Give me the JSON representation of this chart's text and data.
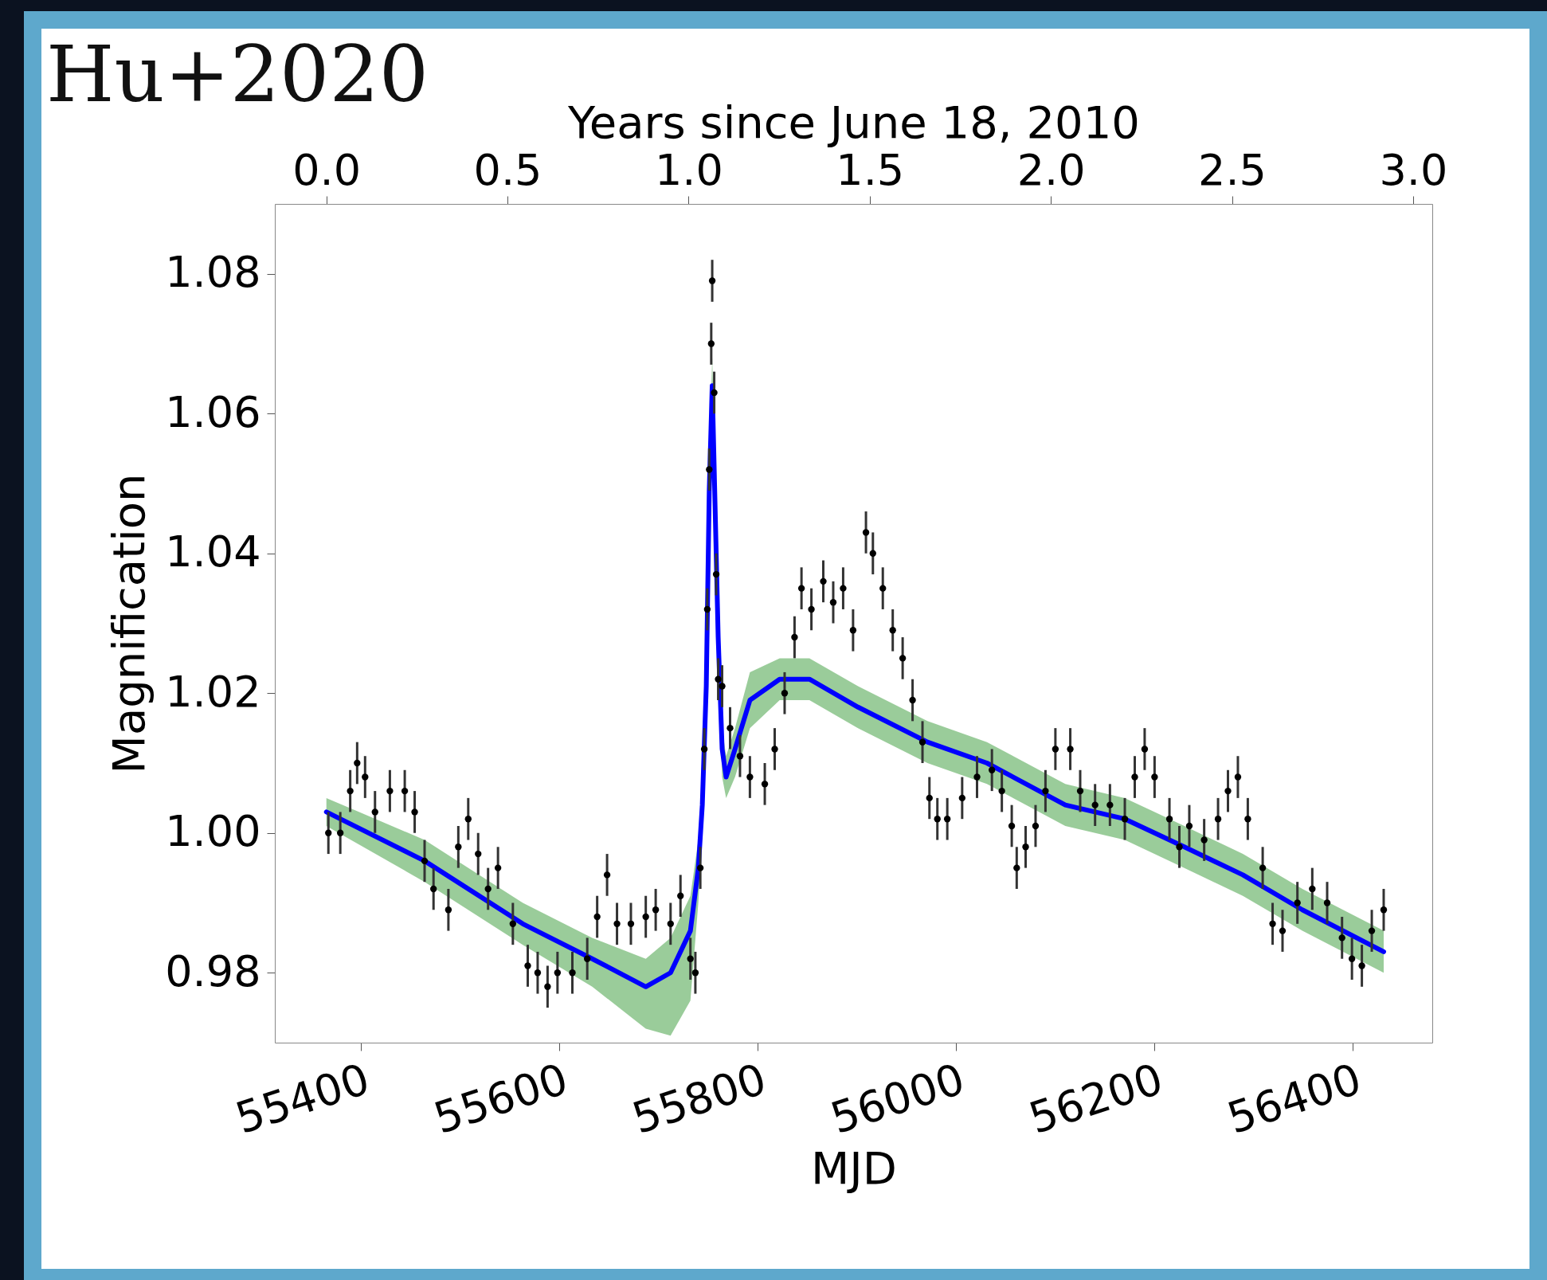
{
  "chart_data": {
    "type": "scatter",
    "title": "Hu+2020",
    "xlabel": "MJD",
    "ylabel": "Magnification",
    "x2label": "Years since June 18, 2010",
    "xlim": [
      55313,
      56480
    ],
    "xticks": [
      55400,
      55600,
      55800,
      56000,
      56200,
      56400
    ],
    "x2lim": [
      -0.142,
      3.053
    ],
    "x2ticks": [
      {
        "value": 0,
        "label": "0.0"
      },
      {
        "value": 0.5,
        "label": "0.5"
      },
      {
        "value": 1,
        "label": "1.0"
      },
      {
        "value": 1.5,
        "label": "1.5"
      },
      {
        "value": 2,
        "label": "2.0"
      },
      {
        "value": 2.5,
        "label": "2.5"
      },
      {
        "value": 3,
        "label": "3.0"
      }
    ],
    "ylim": [
      0.97,
      1.09
    ],
    "yticks": [
      {
        "value": 0.98,
        "label": "0.98"
      },
      {
        "value": 1,
        "label": "1.00"
      },
      {
        "value": 1.02,
        "label": "1.02"
      },
      {
        "value": 1.04,
        "label": "1.04"
      },
      {
        "value": 1.06,
        "label": "1.06"
      },
      {
        "value": 1.08,
        "label": "1.08"
      }
    ],
    "series": [
      {
        "type": "line",
        "color": "#0000ff",
        "x": [
          55365,
          55464,
          55563,
          55633,
          55687,
          55712,
          55732,
          55740,
          55744,
          55748,
          55751,
          55754,
          55760,
          55764,
          55768,
          55777,
          55792,
          55822,
          55852,
          55901,
          55971,
          56031,
          56110,
          56170,
          56230,
          56289,
          56349,
          56431
        ],
        "values": [
          1.003,
          0.996,
          0.987,
          0.982,
          0.978,
          0.98,
          0.986,
          0.995,
          1.004,
          1.021,
          1.049,
          1.064,
          1.028,
          1.012,
          1.008,
          1.012,
          1.019,
          1.022,
          1.022,
          1.018,
          1.013,
          1.01,
          1.004,
          1.002,
          0.998,
          0.994,
          0.989,
          0.983
        ],
        "lower": [
          1.001,
          0.993,
          0.984,
          0.978,
          0.972,
          0.971,
          0.976,
          0.99,
          1.0,
          1.017,
          1.045,
          1.06,
          1.024,
          1.008,
          1.005,
          1.008,
          1.015,
          1.019,
          1.019,
          1.015,
          1.01,
          1.007,
          1.001,
          0.999,
          0.995,
          0.991,
          0.986,
          0.98
        ],
        "upper": [
          1.005,
          0.999,
          0.99,
          0.985,
          0.982,
          0.985,
          0.991,
          0.999,
          1.008,
          1.025,
          1.053,
          1.068,
          1.032,
          1.015,
          1.011,
          1.015,
          1.023,
          1.025,
          1.025,
          1.021,
          1.016,
          1.013,
          1.007,
          1.005,
          1.001,
          0.997,
          0.992,
          0.986
        ]
      },
      {
        "color": "#000000",
        "marker": "circle",
        "x": [
          55367,
          55379,
          55389,
          55396,
          55404,
          55414,
          55429,
          55444,
          55454,
          55464,
          55473,
          55488,
          55498,
          55508,
          55518,
          55528,
          55538,
          55553,
          55568,
          55578,
          55588,
          55598,
          55613,
          55628,
          55638,
          55648,
          55658,
          55672,
          55687,
          55697,
          55712,
          55722,
          55732,
          55737,
          55742,
          55746,
          55749,
          55751,
          55753,
          55754,
          55756,
          55758,
          55760,
          55764,
          55772,
          55782,
          55792,
          55807,
          55817,
          55827,
          55837,
          55844,
          55854,
          55866,
          55876,
          55886,
          55896,
          55909,
          55916,
          55926,
          55936,
          55946,
          55956,
          55966,
          55973,
          55981,
          55991,
          56006,
          56021,
          56036,
          56046,
          56056,
          56061,
          56070,
          56080,
          56090,
          56100,
          56115,
          56125,
          56140,
          56155,
          56170,
          56180,
          56190,
          56200,
          56215,
          56225,
          56235,
          56250,
          56264,
          56274,
          56284,
          56294,
          56309,
          56319,
          56329,
          56344,
          56359,
          56374,
          56389,
          56399,
          56409,
          56419,
          56431
        ],
        "values": [
          1.0,
          1.0,
          1.006,
          1.01,
          1.008,
          1.003,
          1.006,
          1.006,
          1.003,
          0.996,
          0.992,
          0.989,
          0.998,
          1.002,
          0.997,
          0.992,
          0.995,
          0.987,
          0.981,
          0.98,
          0.978,
          0.98,
          0.98,
          0.982,
          0.988,
          0.994,
          0.987,
          0.987,
          0.988,
          0.989,
          0.987,
          0.991,
          0.982,
          0.98,
          0.995,
          1.012,
          1.032,
          1.052,
          1.07,
          1.079,
          1.063,
          1.037,
          1.022,
          1.021,
          1.015,
          1.011,
          1.008,
          1.007,
          1.012,
          1.02,
          1.028,
          1.035,
          1.032,
          1.036,
          1.033,
          1.035,
          1.029,
          1.043,
          1.04,
          1.035,
          1.029,
          1.025,
          1.019,
          1.013,
          1.005,
          1.002,
          1.002,
          1.005,
          1.008,
          1.009,
          1.006,
          1.001,
          0.995,
          0.998,
          1.001,
          1.006,
          1.012,
          1.012,
          1.006,
          1.004,
          1.004,
          1.002,
          1.008,
          1.012,
          1.008,
          1.002,
          0.998,
          1.001,
          0.999,
          1.002,
          1.006,
          1.008,
          1.002,
          0.995,
          0.987,
          0.986,
          0.99,
          0.992,
          0.99,
          0.985,
          0.982,
          0.981,
          0.986,
          0.989
        ],
        "errors": [
          0.003,
          0.003,
          0.003,
          0.003,
          0.003,
          0.003,
          0.003,
          0.003,
          0.003,
          0.003,
          0.003,
          0.003,
          0.003,
          0.003,
          0.003,
          0.003,
          0.003,
          0.003,
          0.003,
          0.003,
          0.003,
          0.003,
          0.003,
          0.003,
          0.003,
          0.003,
          0.003,
          0.003,
          0.003,
          0.003,
          0.003,
          0.003,
          0.003,
          0.003,
          0.003,
          0.003,
          0.003,
          0.003,
          0.003,
          0.003,
          0.003,
          0.003,
          0.003,
          0.003,
          0.003,
          0.003,
          0.003,
          0.003,
          0.003,
          0.003,
          0.003,
          0.003,
          0.003,
          0.003,
          0.003,
          0.003,
          0.003,
          0.003,
          0.003,
          0.003,
          0.003,
          0.003,
          0.003,
          0.003,
          0.003,
          0.003,
          0.003,
          0.003,
          0.003,
          0.003,
          0.003,
          0.003,
          0.003,
          0.003,
          0.003,
          0.003,
          0.003,
          0.003,
          0.003,
          0.003,
          0.003,
          0.003,
          0.003,
          0.003,
          0.003,
          0.003,
          0.003,
          0.003,
          0.003,
          0.003,
          0.003,
          0.003,
          0.003,
          0.003,
          0.003,
          0.003,
          0.003,
          0.003,
          0.003,
          0.003,
          0.003,
          0.003,
          0.003,
          0.003
        ]
      }
    ]
  }
}
